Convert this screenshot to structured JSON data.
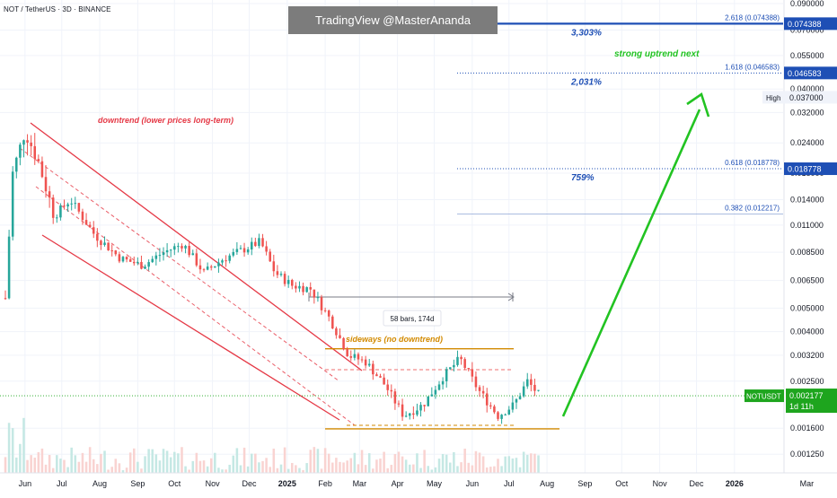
{
  "header": {
    "symbol_line": "NOT / TetherUS · 3D · BINANCE",
    "watermark": "TradingView @MasterAnanda"
  },
  "colors": {
    "up": "#26a69a",
    "down": "#ef5350",
    "fib_blue": "#1e4fb5",
    "uptrend_green": "#22c322",
    "downtrend_red": "#e53946",
    "sideways_orange": "#d28a00",
    "price_green": "#1aa51a"
  },
  "chart_data": {
    "type": "candlestick",
    "y_axis": {
      "scale": "log",
      "range": [
        0.00115,
        0.09
      ],
      "tick_labels": [
        "0.090000",
        "0.070000",
        "0.055000",
        "0.040000",
        "0.032000",
        "0.024000",
        "0.018000",
        "0.014000",
        "0.011000",
        "0.008500",
        "0.006500",
        "0.005000",
        "0.004000",
        "0.003200",
        "0.002500",
        "0.001600",
        "0.001250"
      ]
    },
    "x_axis": {
      "labels": [
        "Jun",
        "Jul",
        "Aug",
        "Sep",
        "Oct",
        "Nov",
        "Dec",
        "2025",
        "Feb",
        "Mar",
        "Apr",
        "May",
        "Jun",
        "Jul",
        "Aug",
        "Sep",
        "Oct",
        "Nov",
        "Dec",
        "2026",
        "Mar"
      ],
      "bold_labels": [
        "2025",
        "2026"
      ]
    },
    "price_path": [
      {
        "date": "2024-05-16",
        "price": 0.0055
      },
      {
        "date": "2024-05-22",
        "price": 0.018
      },
      {
        "date": "2024-06-01",
        "price": 0.027
      },
      {
        "date": "2024-06-12",
        "price": 0.02
      },
      {
        "date": "2024-06-25",
        "price": 0.012
      },
      {
        "date": "2024-07-08",
        "price": 0.014
      },
      {
        "date": "2024-07-28",
        "price": 0.01
      },
      {
        "date": "2024-08-18",
        "price": 0.008
      },
      {
        "date": "2024-09-05",
        "price": 0.0075
      },
      {
        "date": "2024-09-22",
        "price": 0.0085
      },
      {
        "date": "2024-10-08",
        "price": 0.0092
      },
      {
        "date": "2024-10-25",
        "price": 0.007
      },
      {
        "date": "2024-11-10",
        "price": 0.008
      },
      {
        "date": "2024-11-28",
        "price": 0.0088
      },
      {
        "date": "2024-12-10",
        "price": 0.0094
      },
      {
        "date": "2024-12-22",
        "price": 0.007
      },
      {
        "date": "2025-01-05",
        "price": 0.0062
      },
      {
        "date": "2025-01-20",
        "price": 0.006
      },
      {
        "date": "2025-02-05",
        "price": 0.0045
      },
      {
        "date": "2025-02-20",
        "price": 0.0032
      },
      {
        "date": "2025-03-06",
        "price": 0.003
      },
      {
        "date": "2025-03-22",
        "price": 0.0024
      },
      {
        "date": "2025-04-06",
        "price": 0.0018
      },
      {
        "date": "2025-04-22",
        "price": 0.002
      },
      {
        "date": "2025-05-08",
        "price": 0.0026
      },
      {
        "date": "2025-05-22",
        "price": 0.0031
      },
      {
        "date": "2025-06-06",
        "price": 0.0023
      },
      {
        "date": "2025-06-22",
        "price": 0.0018
      },
      {
        "date": "2025-07-05",
        "price": 0.002
      },
      {
        "date": "2025-07-16",
        "price": 0.0025
      },
      {
        "date": "2025-07-26",
        "price": 0.002177
      }
    ],
    "last_price": {
      "label": "NOTUSDT",
      "value": "0.002177",
      "countdown": "1d 11h"
    },
    "high_label": {
      "label": "High",
      "value": "0.037000"
    },
    "fib_levels": [
      {
        "ratio_label": "2.618 (0.074388)",
        "axis_tag": "0.074388",
        "value": 0.074388,
        "percent": "3,303%",
        "style": "solid"
      },
      {
        "ratio_label": "1.618 (0.046583)",
        "axis_tag": "0.046583",
        "value": 0.046583,
        "percent": "2,031%",
        "style": "dotted"
      },
      {
        "ratio_label": "0.618 (0.018778)",
        "axis_tag": "0.018778",
        "value": 0.018778,
        "percent": "759%",
        "style": "dotted"
      },
      {
        "ratio_label": "0.382 (0.012217)",
        "axis_tag": "",
        "value": 0.012217,
        "percent": "",
        "style": "thin"
      }
    ],
    "annotations": {
      "downtrend": "downtrend (lower prices long-term)",
      "sideways": "sideways (no downtrend)",
      "uptrend": "strong uptrend next",
      "measure": "58 bars, 174d"
    },
    "range_lines": {
      "top": 0.0034,
      "bottom": 0.00159
    }
  }
}
